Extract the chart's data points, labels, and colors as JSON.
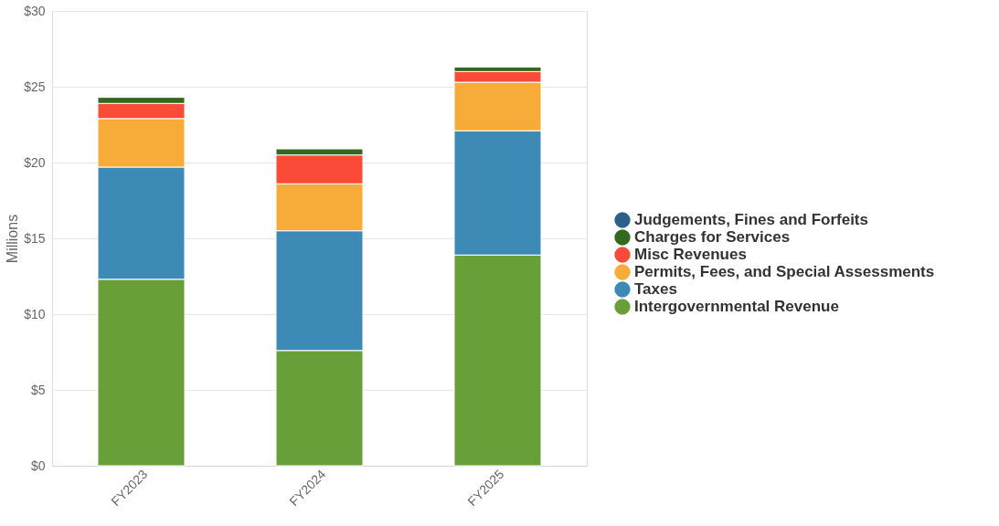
{
  "chart_data": {
    "type": "bar",
    "stacked": true,
    "ylabel": "Millions",
    "categories": [
      "FY2023",
      "FY2024",
      "FY2025"
    ],
    "series": [
      {
        "name": "Intergovernmental Revenue",
        "color": "#689f38",
        "values": [
          12.3,
          7.6,
          13.9
        ]
      },
      {
        "name": "Taxes",
        "color": "#3c8ab5",
        "values": [
          7.4,
          7.9,
          8.2
        ]
      },
      {
        "name": "Permits, Fees, and Special Assessments",
        "color": "#f7ab38",
        "values": [
          3.2,
          3.1,
          3.2
        ]
      },
      {
        "name": "Misc Revenues",
        "color": "#fa4a38",
        "values": [
          1.0,
          1.9,
          0.7
        ]
      },
      {
        "name": "Charges for Services",
        "color": "#33691e",
        "values": [
          0.4,
          0.4,
          0.3
        ]
      },
      {
        "name": "Judgements, Fines and Forfeits",
        "color": "#2d5f8b",
        "values": [
          null,
          null,
          null
        ]
      }
    ],
    "ylim": [
      0,
      30
    ],
    "yticks": [
      {
        "value": 0,
        "label": "$0"
      },
      {
        "value": 5,
        "label": "$5"
      },
      {
        "value": 10,
        "label": "$10"
      },
      {
        "value": 15,
        "label": "$15"
      },
      {
        "value": 20,
        "label": "$20"
      },
      {
        "value": 25,
        "label": "$25"
      },
      {
        "value": 30,
        "label": "$30"
      }
    ],
    "grid": "y",
    "legend": "right"
  }
}
